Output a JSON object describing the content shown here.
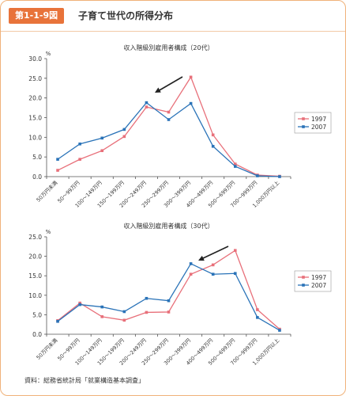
{
  "header": {
    "badge": "第1-1-9図",
    "title": "子育て世代の所得分布"
  },
  "source": "資料：総務省統計局「就業構造基本調査」",
  "colors": {
    "series_1997": "#e8707a",
    "series_2007": "#2a73b8",
    "arrow": "#222222"
  },
  "chart_data": [
    {
      "type": "line",
      "title": "収入階級別雇用者構成（20代）",
      "ylabel": "%",
      "ylim": [
        0,
        30
      ],
      "yticks": [
        "0.0",
        "5.0",
        "10.0",
        "15.0",
        "20.0",
        "25.0",
        "30.0"
      ],
      "grid": false,
      "legend_position": "right",
      "categories": [
        "50万円未満",
        "50〜99万円",
        "100〜149万円",
        "150〜199万円",
        "200〜249万円",
        "250〜299万円",
        "300〜399万円",
        "400〜499万円",
        "500〜699万円",
        "700〜999万円",
        "1,000万円以上"
      ],
      "series": [
        {
          "name": "1997",
          "values": [
            1.6,
            4.4,
            6.6,
            10.2,
            17.7,
            16.4,
            25.3,
            10.6,
            3.2,
            0.4,
            0.1
          ]
        },
        {
          "name": "2007",
          "values": [
            4.4,
            8.3,
            9.8,
            12.0,
            18.8,
            14.5,
            18.6,
            7.7,
            2.6,
            0.2,
            0.0
          ]
        }
      ]
    },
    {
      "type": "line",
      "title": "収入階級別雇用者構成（30代）",
      "ylabel": "%",
      "ylim": [
        0,
        25
      ],
      "yticks": [
        "0.0",
        "5.0",
        "10.0",
        "15.0",
        "20.0",
        "25.0"
      ],
      "grid": false,
      "legend_position": "right",
      "categories": [
        "50万円未満",
        "50〜99万円",
        "100〜149万円",
        "150〜199万円",
        "200〜249万円",
        "250〜299万円",
        "300〜399万円",
        "400〜499万円",
        "500〜699万円",
        "700〜999万円",
        "1,000万円以上"
      ],
      "series": [
        {
          "name": "1997",
          "values": [
            3.5,
            8.0,
            4.5,
            3.6,
            5.6,
            5.7,
            15.4,
            17.8,
            21.5,
            6.3,
            1.3
          ]
        },
        {
          "name": "2007",
          "values": [
            3.3,
            7.6,
            7.0,
            5.8,
            9.2,
            8.6,
            18.1,
            15.4,
            15.6,
            4.3,
            1.0
          ]
        }
      ]
    }
  ]
}
